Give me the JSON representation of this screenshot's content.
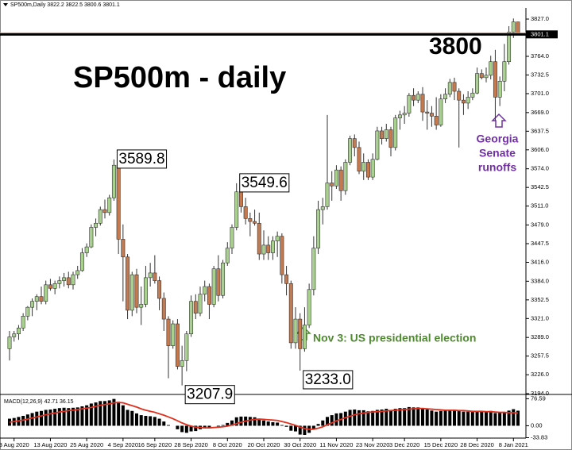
{
  "chart_data": {
    "type": "candlestick",
    "header": "SP500m,Daily 3822.2 3822.5 3800.6 3801.1",
    "title": "SP500m - daily",
    "level_label": "3800",
    "annotations": {
      "high1": "3589.8",
      "low1": "3207.9",
      "high2": "3549.6",
      "low2": "3233.0",
      "georgia": [
        "Georgia",
        "Senate",
        "runoffs"
      ],
      "election": "Nov 3: US presidential election"
    },
    "up_color": "#a9d18e",
    "down_color": "#c5794f",
    "ylim": [
      3192.7,
      3845.8
    ],
    "yticks": [
      {
        "value": 3827,
        "label": "3827.0"
      },
      {
        "value": 3764,
        "label": "3764.0"
      },
      3732.5,
      {
        "value": 3701,
        "label": "3701.0"
      },
      {
        "value": 3669,
        "label": "3669.0"
      },
      3637.5,
      {
        "value": 3606,
        "label": "3606.0"
      },
      {
        "value": 3574,
        "label": "3574.0"
      },
      3542.5,
      {
        "value": 3511,
        "label": "3511.0"
      },
      {
        "value": 3479,
        "label": "3479.0"
      },
      3447.5,
      {
        "value": 3416,
        "label": "3416.0"
      },
      {
        "value": 3384,
        "label": "3384.0"
      },
      3352.5,
      {
        "value": 3321,
        "label": "3321.0"
      },
      {
        "value": 3289,
        "label": "3289.0"
      },
      3257.5,
      {
        "value": 3226,
        "label": "3226.0"
      },
      {
        "value": 3194,
        "label": "3194.0"
      }
    ],
    "categories": [
      null,
      "3 Aug 2020",
      null,
      null,
      null,
      null,
      null,
      null,
      null,
      "13 Aug 2020",
      null,
      null,
      null,
      null,
      null,
      null,
      null,
      "25 Aug 2020",
      null,
      null,
      null,
      null,
      null,
      null,
      null,
      "4 Sep 2020",
      null,
      null,
      null,
      null,
      null,
      null,
      "16 Sep 2020",
      null,
      null,
      null,
      null,
      null,
      null,
      null,
      "28 Sep 2020",
      null,
      null,
      null,
      null,
      null,
      null,
      null,
      "8 Oct 2020",
      null,
      null,
      null,
      null,
      null,
      null,
      null,
      "20 Oct 2020",
      null,
      null,
      null,
      null,
      null,
      null,
      null,
      "30 Oct 2020",
      null,
      null,
      null,
      null,
      null,
      null,
      null,
      "11 Nov 2020",
      null,
      null,
      null,
      null,
      null,
      null,
      null,
      "23 Nov 2020",
      null,
      null,
      null,
      null,
      null,
      null,
      "3 Dec 2020",
      null,
      null,
      null,
      null,
      null,
      null,
      null,
      "15 Dec 2020",
      null,
      null,
      null,
      null,
      null,
      null,
      null,
      "28 Dec 2020",
      null,
      null,
      null,
      null,
      null,
      null,
      null,
      "8 Jan 2021",
      null
    ],
    "ohlc": [
      [
        3270,
        3300,
        3250,
        3290
      ],
      [
        3290,
        3300,
        3282,
        3295
      ],
      [
        3295,
        3310,
        3285,
        3305
      ],
      [
        3305,
        3330,
        3300,
        3325
      ],
      [
        3325,
        3342,
        3318,
        3340
      ],
      [
        3340,
        3355,
        3325,
        3350
      ],
      [
        3350,
        3362,
        3335,
        3358
      ],
      [
        3358,
        3375,
        3345,
        3350
      ],
      [
        3350,
        3385,
        3345,
        3378
      ],
      [
        3378,
        3388,
        3368,
        3372
      ],
      [
        3372,
        3385,
        3362,
        3380
      ],
      [
        3380,
        3392,
        3372,
        3385
      ],
      [
        3385,
        3398,
        3375,
        3390
      ],
      [
        3390,
        3400,
        3372,
        3378
      ],
      [
        3378,
        3400,
        3370,
        3395
      ],
      [
        3395,
        3410,
        3388,
        3402
      ],
      [
        3402,
        3440,
        3400,
        3432
      ],
      [
        3432,
        3448,
        3425,
        3442
      ],
      [
        3442,
        3480,
        3440,
        3475
      ],
      [
        3475,
        3490,
        3460,
        3482
      ],
      [
        3482,
        3510,
        3478,
        3505
      ],
      [
        3505,
        3522,
        3490,
        3500
      ],
      [
        3500,
        3530,
        3495,
        3525
      ],
      [
        3525,
        3589.8,
        3520,
        3580
      ],
      [
        3580,
        3585,
        3430,
        3455
      ],
      [
        3455,
        3480,
        3350,
        3425
      ],
      [
        3425,
        3430,
        3320,
        3335
      ],
      [
        3335,
        3400,
        3325,
        3395
      ],
      [
        3395,
        3405,
        3330,
        3340
      ],
      [
        3340,
        3375,
        3310,
        3345
      ],
      [
        3345,
        3410,
        3340,
        3390
      ],
      [
        3390,
        3415,
        3375,
        3398
      ],
      [
        3398,
        3428,
        3380,
        3385
      ],
      [
        3385,
        3392,
        3335,
        3355
      ],
      [
        3355,
        3365,
        3300,
        3320
      ],
      [
        3320,
        3325,
        3220,
        3275
      ],
      [
        3275,
        3318,
        3270,
        3312
      ],
      [
        3312,
        3320,
        3235,
        3240
      ],
      [
        3240,
        3275,
        3207.9,
        3250
      ],
      [
        3250,
        3300,
        3232,
        3295
      ],
      [
        3295,
        3360,
        3290,
        3350
      ],
      [
        3350,
        3362,
        3320,
        3330
      ],
      [
        3330,
        3375,
        3325,
        3362
      ],
      [
        3362,
        3385,
        3350,
        3375
      ],
      [
        3375,
        3380,
        3320,
        3345
      ],
      [
        3345,
        3410,
        3340,
        3405
      ],
      [
        3405,
        3428,
        3350,
        3360
      ],
      [
        3360,
        3420,
        3355,
        3415
      ],
      [
        3415,
        3450,
        3410,
        3440
      ],
      [
        3440,
        3480,
        3430,
        3475
      ],
      [
        3475,
        3549.6,
        3470,
        3535
      ],
      [
        3535,
        3545,
        3500,
        3510
      ],
      [
        3510,
        3525,
        3480,
        3490
      ],
      [
        3490,
        3500,
        3460,
        3485
      ],
      [
        3485,
        3505,
        3478,
        3482
      ],
      [
        3482,
        3500,
        3420,
        3430
      ],
      [
        3430,
        3470,
        3420,
        3445
      ],
      [
        3445,
        3460,
        3420,
        3432
      ],
      [
        3432,
        3460,
        3420,
        3452
      ],
      [
        3452,
        3468,
        3425,
        3460
      ],
      [
        3460,
        3465,
        3380,
        3395
      ],
      [
        3395,
        3410,
        3360,
        3380
      ],
      [
        3380,
        3385,
        3270,
        3280
      ],
      [
        3280,
        3340,
        3270,
        3320
      ],
      [
        3320,
        3330,
        3233.0,
        3270
      ],
      [
        3270,
        3340,
        3265,
        3310
      ],
      [
        3310,
        3380,
        3305,
        3370
      ],
      [
        3370,
        3460,
        3360,
        3440
      ],
      [
        3440,
        3520,
        3430,
        3505
      ],
      [
        3505,
        3525,
        3480,
        3510
      ],
      [
        3510,
        3665,
        3505,
        3550
      ],
      [
        3550,
        3570,
        3520,
        3545
      ],
      [
        3545,
        3580,
        3540,
        3572
      ],
      [
        3572,
        3578,
        3520,
        3537
      ],
      [
        3537,
        3590,
        3530,
        3585
      ],
      [
        3585,
        3630,
        3580,
        3625
      ],
      [
        3625,
        3632,
        3595,
        3610
      ],
      [
        3610,
        3620,
        3565,
        3570
      ],
      [
        3570,
        3600,
        3555,
        3585
      ],
      [
        3585,
        3590,
        3555,
        3560
      ],
      [
        3560,
        3600,
        3555,
        3590
      ],
      [
        3590,
        3645,
        3588,
        3638
      ],
      [
        3638,
        3645,
        3615,
        3625
      ],
      [
        3625,
        3650,
        3620,
        3640
      ],
      [
        3640,
        3645,
        3595,
        3610
      ],
      [
        3610,
        3665,
        3605,
        3660
      ],
      [
        3660,
        3672,
        3640,
        3665
      ],
      [
        3665,
        3680,
        3650,
        3668
      ],
      [
        3668,
        3702,
        3662,
        3698
      ],
      [
        3698,
        3710,
        3680,
        3690
      ],
      [
        3690,
        3705,
        3685,
        3700
      ],
      [
        3700,
        3712,
        3655,
        3670
      ],
      [
        3670,
        3690,
        3640,
        3668
      ],
      [
        3668,
        3680,
        3645,
        3663
      ],
      [
        3663,
        3695,
        3640,
        3648
      ],
      [
        3648,
        3700,
        3645,
        3692
      ],
      [
        3692,
        3710,
        3685,
        3700
      ],
      [
        3700,
        3726,
        3695,
        3720
      ],
      [
        3720,
        3728,
        3690,
        3705
      ],
      [
        3705,
        3710,
        3610,
        3690
      ],
      [
        3690,
        3700,
        3665,
        3685
      ],
      [
        3685,
        3705,
        3675,
        3695
      ],
      [
        3695,
        3710,
        3690,
        3702
      ],
      [
        3702,
        3745,
        3700,
        3735
      ],
      [
        3735,
        3742,
        3725,
        3728
      ],
      [
        3728,
        3745,
        3720,
        3732
      ],
      [
        3732,
        3765,
        3725,
        3755
      ],
      [
        3755,
        3775,
        3655,
        3695
      ],
      [
        3695,
        3730,
        3680,
        3722
      ],
      [
        3722,
        3785,
        3705,
        3755
      ],
      [
        3755,
        3815,
        3750,
        3805
      ],
      [
        3805,
        3828,
        3795,
        3822.2
      ],
      [
        3822.2,
        3822.5,
        3800.6,
        3801.1
      ]
    ],
    "macd": {
      "label": "MACD(12,26,9) 42.71 36.15",
      "ylim": [
        -35,
        82
      ],
      "yticks": [
        76.59,
        {
          "value": 0,
          "label": "0.00"
        },
        -33.83
      ],
      "hist_color": "#000000",
      "signal_color": "#e0301e",
      "histogram": [
        20,
        22,
        25,
        28,
        32,
        36,
        40,
        42,
        45,
        46,
        48,
        50,
        51,
        50,
        51,
        52,
        55,
        58,
        63,
        66,
        70,
        70,
        72,
        76,
        68,
        58,
        45,
        42,
        35,
        30,
        28,
        27,
        25,
        20,
        12,
        2,
        0,
        -10,
        -18,
        -20,
        -16,
        -15,
        -10,
        -6,
        -5,
        0,
        -2,
        2,
        8,
        15,
        24,
        26,
        26,
        25,
        24,
        18,
        15,
        12,
        10,
        9,
        2,
        -3,
        -14,
        -16,
        -25,
        -26,
        -20,
        -8,
        5,
        15,
        25,
        30,
        35,
        36,
        40,
        45,
        46,
        44,
        44,
        41,
        42,
        45,
        46,
        48,
        45,
        48,
        50,
        50,
        53,
        52,
        52,
        48,
        46,
        43,
        40,
        42,
        43,
        45,
        45,
        42,
        40,
        40,
        39,
        41,
        41,
        40,
        42,
        36,
        37,
        39,
        43,
        47,
        42.71
      ],
      "signal": [
        10,
        12,
        14,
        16,
        19,
        22,
        25,
        28,
        31,
        34,
        36,
        39,
        41,
        43,
        44,
        46,
        48,
        50,
        52,
        55,
        58,
        60,
        62,
        65,
        66,
        65,
        61,
        57,
        53,
        48,
        44,
        41,
        38,
        34,
        30,
        25,
        20,
        14,
        8,
        3,
        -1,
        -4,
        -5,
        -6,
        -6,
        -5,
        -4,
        -3,
        -1,
        2,
        6,
        10,
        13,
        16,
        18,
        19,
        18,
        17,
        16,
        15,
        12,
        9,
        5,
        1,
        -4,
        -8,
        -10,
        -10,
        -7,
        -3,
        3,
        8,
        14,
        18,
        23,
        27,
        31,
        34,
        36,
        38,
        39,
        40,
        41,
        42,
        43,
        44,
        45,
        46,
        47,
        48,
        49,
        49,
        48,
        47,
        46,
        45,
        44,
        44,
        44,
        43,
        43,
        42,
        41,
        41,
        41,
        40,
        40,
        39,
        38,
        38,
        37,
        37,
        36.15
      ]
    }
  }
}
